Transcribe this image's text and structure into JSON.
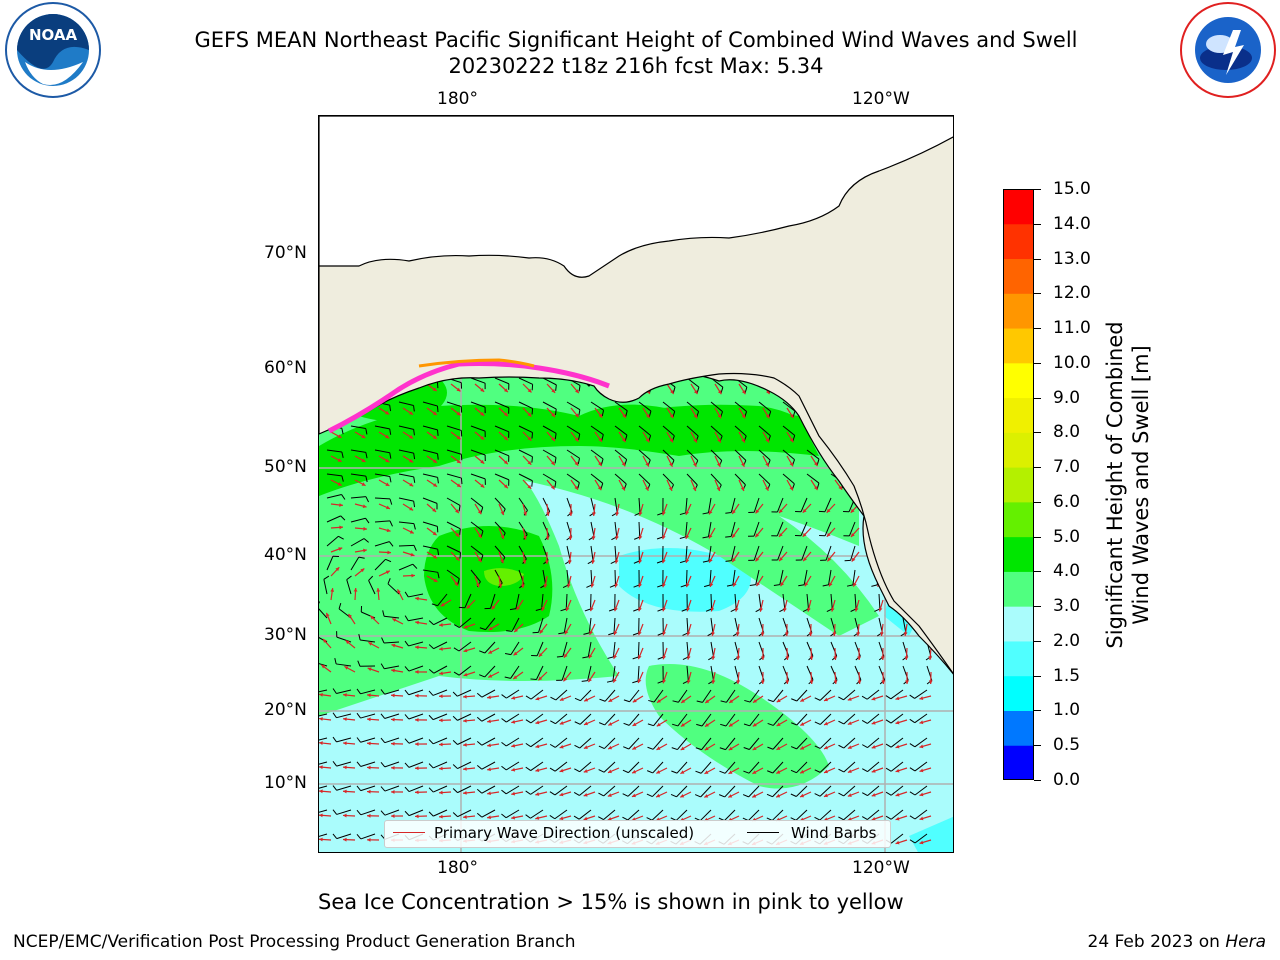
{
  "header": {
    "title_line1": "GEFS MEAN Northeast Pacific Significant Height of Combined Wind Waves and Swell",
    "title_line2": "20230222 t18z 216h fcst   Max: 5.34"
  },
  "logos": {
    "left": "NOAA",
    "right": "NATIONAL WEATHER SERVICE"
  },
  "map": {
    "lon_labels_top": [
      "180°",
      "120°W"
    ],
    "lon_labels_bottom": [
      "180°",
      "120°W"
    ],
    "lat_labels": [
      "70°N",
      "60°N",
      "50°N",
      "40°N",
      "30°N",
      "20°N",
      "10°N"
    ]
  },
  "legend": {
    "wave_dir": "Primary Wave Direction (unscaled)",
    "wind_barbs": "Wind Barbs",
    "wave_dir_color": "#d62728",
    "wind_barbs_color": "#000000"
  },
  "colorbar": {
    "ticks": [
      "15.0",
      "14.0",
      "13.0",
      "12.0",
      "11.0",
      "10.0",
      "9.0",
      "8.0",
      "7.0",
      "6.0",
      "5.0",
      "4.0",
      "3.0",
      "2.0",
      "1.5",
      "1.0",
      "0.5",
      "0.0"
    ],
    "label_line1": "Significant Height of Combined",
    "label_line2": "Wind Waves and Swell [m]",
    "colors": [
      "#0000ff",
      "#0078ff",
      "#00ffff",
      "#50ffff",
      "#aafcfc",
      "#50ff80",
      "#00e600",
      "#64f000",
      "#b4f000",
      "#dcf000",
      "#f0f000",
      "#ffff00",
      "#ffc800",
      "#ff9600",
      "#ff6400",
      "#ff3200",
      "#ff0000"
    ]
  },
  "notes": {
    "ice": "Sea Ice Concentration > 15% is shown in pink to yellow"
  },
  "footer": {
    "left": "NCEP/EMC/Verification Post Processing Product Generation Branch",
    "right_date": "24 Feb 2023 on ",
    "right_host": "Hera"
  },
  "colors": {
    "land": "#efedde",
    "grid": "#b0b0b0"
  }
}
